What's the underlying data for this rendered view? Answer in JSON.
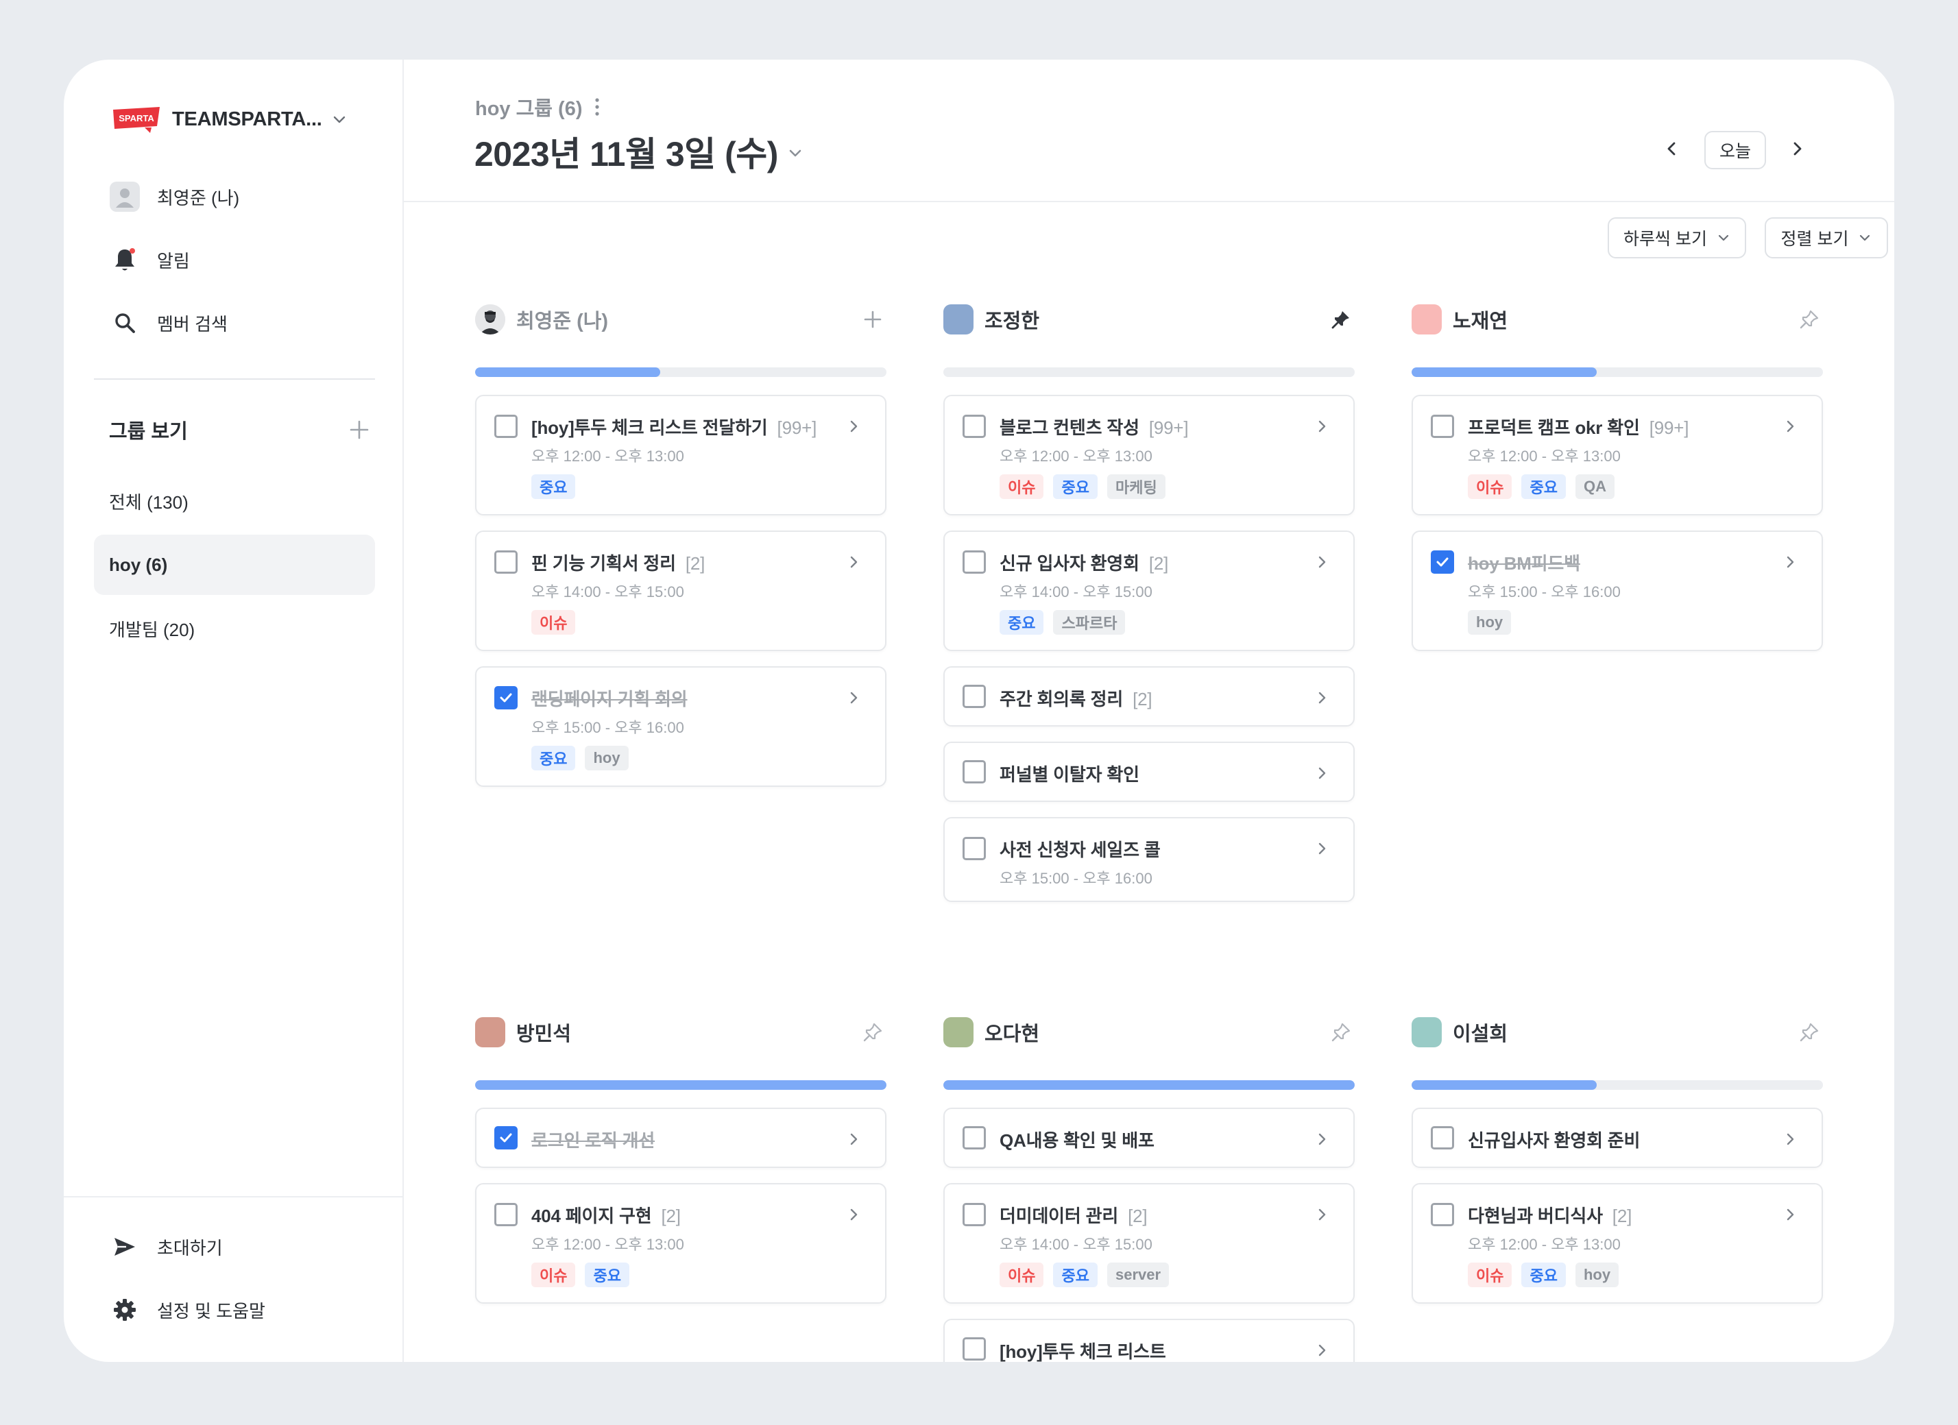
{
  "workspace": {
    "logo_text": "SPARTA",
    "name": "TEAMSPARTA..."
  },
  "sidebar": {
    "me": "최영준 (나)",
    "alerts": "알림",
    "member_search": "멤버 검색",
    "group_header": "그룹 보기",
    "groups": [
      {
        "label": "전체 (130)",
        "active": false
      },
      {
        "label": "hoy (6)",
        "active": true
      },
      {
        "label": "개발팀 (20)",
        "active": false
      }
    ],
    "invite": "초대하기",
    "settings": "설정 및 도움말"
  },
  "header": {
    "group_label": "hoy 그룹 (6)",
    "date": "2023년 11월 3일 (수)",
    "today_button": "오늘",
    "view_dropdown": "하루씩 보기",
    "sort_dropdown": "정렬 보기"
  },
  "colors": {
    "accent": "#2f76f0",
    "progress": "#7daaf7",
    "issue": "#ef4d4d",
    "important": "#2f76f0"
  },
  "columns": [
    {
      "name": "최영준 (나)",
      "avatar": "photo",
      "action": "plus-icon",
      "progress": 0.45,
      "tasks": [
        {
          "title": "[hoy]투두 체크 리스트 전달하기",
          "count": "[99+]",
          "time": "오후 12:00 - 오후 13:00",
          "tags": [
            {
              "label": "중요",
              "type": "important"
            }
          ],
          "done": false
        },
        {
          "title": "핀 기능 기획서 정리",
          "count": "[2]",
          "time": "오후 14:00 - 오후 15:00",
          "tags": [
            {
              "label": "이슈",
              "type": "issue"
            }
          ],
          "done": false
        },
        {
          "title": "랜딩페이지 기획 회의",
          "count": "",
          "time": "오후 15:00 - 오후 16:00",
          "tags": [
            {
              "label": "중요",
              "type": "important"
            },
            {
              "label": "hoy",
              "type": "other"
            }
          ],
          "done": true
        }
      ]
    },
    {
      "name": "조정한",
      "avatar": "#8aa7cf",
      "action": "pin-filled-icon",
      "progress": 0,
      "tasks": [
        {
          "title": "블로그 컨텐츠 작성",
          "count": "[99+]",
          "time": "오후 12:00 - 오후 13:00",
          "tags": [
            {
              "label": "이슈",
              "type": "issue"
            },
            {
              "label": "중요",
              "type": "important"
            },
            {
              "label": "마케팅",
              "type": "other"
            }
          ],
          "done": false
        },
        {
          "title": "신규 입사자 환영회",
          "count": "[2]",
          "time": "오후 14:00 - 오후 15:00",
          "tags": [
            {
              "label": "중요",
              "type": "important"
            },
            {
              "label": "스파르타",
              "type": "other"
            }
          ],
          "done": false
        },
        {
          "title": "주간 회의록 정리",
          "count": "[2]",
          "time": "",
          "tags": [],
          "done": false
        },
        {
          "title": "퍼널별 이탈자 확인",
          "count": "",
          "time": "",
          "tags": [],
          "done": false
        },
        {
          "title": "사전 신청자 세일즈 콜",
          "count": "",
          "time": "오후 15:00 - 오후 16:00",
          "tags": [],
          "done": false
        }
      ]
    },
    {
      "name": "노재연",
      "avatar": "#f9b9b7",
      "action": "pin-outline-icon",
      "progress": 0.45,
      "tasks": [
        {
          "title": "프로덕트 캠프 okr 확인",
          "count": "[99+]",
          "time": "오후 12:00 - 오후 13:00",
          "tags": [
            {
              "label": "이슈",
              "type": "issue"
            },
            {
              "label": "중요",
              "type": "important"
            },
            {
              "label": "QA",
              "type": "other"
            }
          ],
          "done": false
        },
        {
          "title": "hoy BM피드백",
          "count": "",
          "time": "오후 15:00 - 오후 16:00",
          "tags": [
            {
              "label": "hoy",
              "type": "other"
            }
          ],
          "done": true
        }
      ]
    },
    {
      "name": "방민석",
      "avatar": "#d49a8c",
      "action": "pin-outline-icon",
      "progress": 1.0,
      "tasks": [
        {
          "title": "로그인 로직 개선",
          "count": "",
          "time": "",
          "tags": [],
          "done": true
        },
        {
          "title": "404 페이지 구현",
          "count": "[2]",
          "time": "오후 12:00 - 오후 13:00",
          "tags": [
            {
              "label": "이슈",
              "type": "issue"
            },
            {
              "label": "중요",
              "type": "important"
            }
          ],
          "done": false
        }
      ]
    },
    {
      "name": "오다현",
      "avatar": "#a8bb8f",
      "action": "pin-outline-icon",
      "progress": 1.0,
      "tasks": [
        {
          "title": "QA내용 확인 및 배포",
          "count": "",
          "time": "",
          "tags": [],
          "done": false
        },
        {
          "title": "더미데이터 관리",
          "count": "[2]",
          "time": "오후 14:00 - 오후 15:00",
          "tags": [
            {
              "label": "이슈",
              "type": "issue"
            },
            {
              "label": "중요",
              "type": "important"
            },
            {
              "label": "server",
              "type": "other"
            }
          ],
          "done": false
        },
        {
          "title": "[hoy]투두 체크 리스트",
          "count": "",
          "time": "",
          "tags": [],
          "done": false
        }
      ]
    },
    {
      "name": "이설희",
      "avatar": "#99cbc6",
      "action": "pin-outline-icon",
      "progress": 0.45,
      "tasks": [
        {
          "title": "신규입사자 환영회 준비",
          "count": "",
          "time": "",
          "tags": [],
          "done": false
        },
        {
          "title": "다현님과 버디식사",
          "count": "[2]",
          "time": "오후 12:00 - 오후 13:00",
          "tags": [
            {
              "label": "이슈",
              "type": "issue"
            },
            {
              "label": "중요",
              "type": "important"
            },
            {
              "label": "hoy",
              "type": "other"
            }
          ],
          "done": false
        }
      ]
    }
  ]
}
